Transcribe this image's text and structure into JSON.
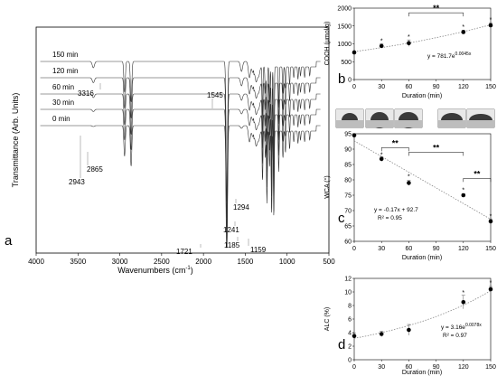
{
  "chart_data": [
    {
      "panel": "a",
      "type": "line",
      "xlabel": "Wavenumbers (cm",
      "xlabel_sup": "-1",
      "xlabel_end": ")",
      "ylabel": "Transmittance (Arb. Units)",
      "xlim": [
        4000,
        500
      ],
      "x_ticks": [
        4000,
        3500,
        3000,
        2500,
        2000,
        1500,
        1000,
        500
      ],
      "series_labels": [
        "150 min",
        "120 min",
        "60 min",
        "30 min",
        "0 min"
      ],
      "peaks": [
        "3316",
        "2943",
        "2865",
        "1721",
        "1545",
        "1294",
        "1241",
        "1185",
        "1159"
      ],
      "series": [
        {
          "name": "150 min",
          "offset": 68
        },
        {
          "name": "120 min",
          "offset": 86
        },
        {
          "name": "60 min",
          "offset": 104
        },
        {
          "name": "30 min",
          "offset": 121
        },
        {
          "name": "0 min",
          "offset": 139
        }
      ]
    },
    {
      "panel": "b",
      "type": "scatter",
      "xlabel": "Duration (min)",
      "ylabel": "COOH (μmol/g)",
      "xlim": [
        0,
        150
      ],
      "ylim": [
        0,
        2000
      ],
      "x_ticks": [
        0,
        30,
        60,
        90,
        120,
        150
      ],
      "y_ticks": [
        0,
        500,
        1000,
        1500,
        2000
      ],
      "x": [
        0,
        30,
        60,
        120,
        150
      ],
      "y": [
        760,
        940,
        1020,
        1330,
        1520
      ],
      "errors": [
        30,
        60,
        90,
        50,
        60
      ],
      "stars": [
        "*",
        "*",
        "*",
        "*"
      ],
      "brackets": [
        "**"
      ],
      "equation": "y = 781.7e",
      "equation_exp": "0.0045x"
    },
    {
      "panel": "c",
      "type": "scatter",
      "xlabel": "Duration (min)",
      "ylabel": "WCA (°)",
      "xlim": [
        0,
        150
      ],
      "ylim": [
        60,
        95
      ],
      "x_ticks": [
        0,
        30,
        60,
        90,
        120,
        150
      ],
      "y_ticks": [
        60,
        65,
        70,
        75,
        80,
        85,
        90,
        95
      ],
      "x": [
        0,
        30,
        60,
        120,
        150
      ],
      "y": [
        94.5,
        86.8,
        79.0,
        75.0,
        66.5
      ],
      "errors": [
        0.5,
        0.8,
        0.8,
        0.5,
        0.8
      ],
      "stars": [
        "*",
        "*",
        "*",
        "*"
      ],
      "brackets": [
        "**",
        "**",
        "**"
      ],
      "equation": "y = -0.17x + 92.7",
      "r2": "R² = 0.95"
    },
    {
      "panel": "d",
      "type": "scatter",
      "xlabel": "Duration (min)",
      "ylabel": "ALC (%)",
      "xlim": [
        0,
        150
      ],
      "ylim": [
        0,
        12
      ],
      "x_ticks": [
        0,
        30,
        60,
        90,
        120,
        150
      ],
      "y_ticks": [
        0,
        2,
        4,
        6,
        8,
        10,
        12
      ],
      "x": [
        0,
        30,
        60,
        120,
        150
      ],
      "y": [
        3.5,
        3.8,
        4.4,
        8.5,
        10.4
      ],
      "errors": [
        0.4,
        0.4,
        0.8,
        1.0,
        0.4
      ],
      "stars": [
        "*",
        "*"
      ],
      "equation": "y = 3.16e",
      "equation_exp": "0.0078x",
      "r2": "R² = 0.97"
    }
  ]
}
